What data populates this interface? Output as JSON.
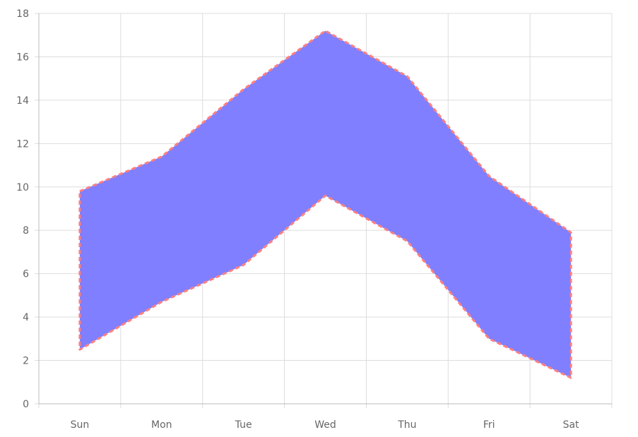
{
  "chart_data": {
    "type": "area",
    "categories": [
      "Sun",
      "Mon",
      "Tue",
      "Wed",
      "Thu",
      "Fri",
      "Sat"
    ],
    "series": [
      {
        "name": "",
        "low": [
          2.5,
          4.7,
          6.4,
          9.6,
          7.5,
          3.0,
          1.2
        ],
        "high": [
          9.8,
          11.4,
          14.5,
          17.2,
          15.1,
          10.5,
          7.9
        ]
      }
    ],
    "ylim": [
      0,
      18
    ],
    "yticks": [
      0,
      2,
      4,
      6,
      8,
      10,
      12,
      14,
      16,
      18
    ],
    "grid": true,
    "legend": "none",
    "colors": {
      "fill": "#7f7fff",
      "border": "#ff7f7f",
      "grid": "#dddddd",
      "axis": "#bbbbbb",
      "text": "#666666"
    }
  }
}
